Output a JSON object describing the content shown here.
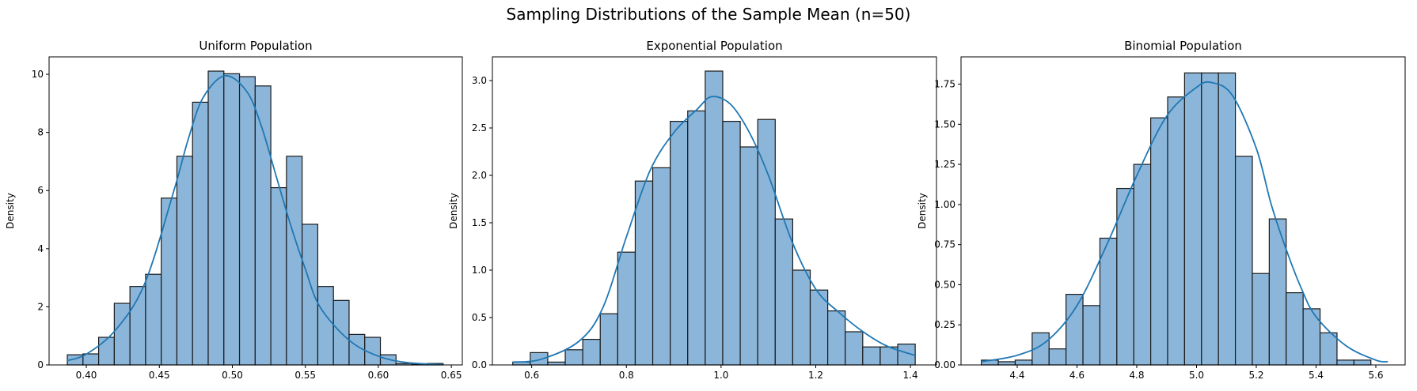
{
  "figure": {
    "title": "Sampling Distributions of the Sample Mean (n=50)"
  },
  "colors": {
    "bar_fill": "#8cb6d9",
    "bar_edge": "#1a1a1a",
    "kde_line": "#1f77b4"
  },
  "chart_data": [
    {
      "type": "bar",
      "title": "Uniform Population",
      "ylabel": "Density",
      "xlabel": "",
      "xlim": [
        0.3745,
        0.6575
      ],
      "ylim": [
        0,
        10.6
      ],
      "xticks": [
        0.4,
        0.45,
        0.5,
        0.55,
        0.6,
        0.65
      ],
      "xtick_labels": [
        "0.40",
        "0.45",
        "0.50",
        "0.55",
        "0.60",
        "0.65"
      ],
      "yticks": [
        0,
        2,
        4,
        6,
        8,
        10
      ],
      "ytick_labels": [
        "0",
        "2",
        "4",
        "6",
        "8",
        "10"
      ],
      "bin_start": 0.387,
      "bin_width": 0.01072,
      "values": [
        0.35,
        0.38,
        0.95,
        2.12,
        2.7,
        3.12,
        5.74,
        7.18,
        9.04,
        10.11,
        10.02,
        9.92,
        9.6,
        6.1,
        7.18,
        4.84,
        2.7,
        2.22,
        1.05,
        0.95,
        0.35,
        0.05,
        0.02,
        0.05
      ],
      "kde": [
        [
          0.387,
          0.15
        ],
        [
          0.4,
          0.37
        ],
        [
          0.42,
          1.2
        ],
        [
          0.44,
          2.8
        ],
        [
          0.46,
          6.0
        ],
        [
          0.47,
          7.8
        ],
        [
          0.48,
          9.2
        ],
        [
          0.495,
          9.95
        ],
        [
          0.51,
          9.4
        ],
        [
          0.52,
          8.2
        ],
        [
          0.53,
          6.5
        ],
        [
          0.54,
          4.8
        ],
        [
          0.55,
          3.3
        ],
        [
          0.56,
          2.0
        ],
        [
          0.58,
          0.85
        ],
        [
          0.6,
          0.3
        ],
        [
          0.62,
          0.08
        ],
        [
          0.645,
          0.01
        ]
      ]
    },
    {
      "type": "bar",
      "title": "Exponential Population",
      "ylabel": "Density",
      "xlabel": "",
      "xlim": [
        0.517,
        1.455
      ],
      "ylim": [
        0,
        3.25
      ],
      "xticks": [
        0.6,
        0.8,
        1.0,
        1.2,
        1.4
      ],
      "xtick_labels": [
        "0.6",
        "0.8",
        "1.0",
        "1.2",
        "1.4"
      ],
      "yticks": [
        0,
        0.5,
        1.0,
        1.5,
        2.0,
        2.5,
        3.0
      ],
      "ytick_labels": [
        "0.0",
        "0.5",
        "1.0",
        "1.5",
        "2.0",
        "2.5",
        "3.0"
      ],
      "bin_start": 0.56,
      "bin_width": 0.03696,
      "values": [
        0.03,
        0.13,
        0.03,
        0.16,
        0.27,
        0.54,
        1.19,
        1.94,
        2.08,
        2.57,
        2.68,
        3.1,
        2.57,
        2.3,
        2.59,
        1.54,
        1.0,
        0.79,
        0.57,
        0.35,
        0.19,
        0.19,
        0.22
      ],
      "kde": [
        [
          0.56,
          0.03
        ],
        [
          0.62,
          0.06
        ],
        [
          0.7,
          0.25
        ],
        [
          0.75,
          0.6
        ],
        [
          0.8,
          1.35
        ],
        [
          0.85,
          2.05
        ],
        [
          0.9,
          2.45
        ],
        [
          0.95,
          2.7
        ],
        [
          0.98,
          2.83
        ],
        [
          1.02,
          2.75
        ],
        [
          1.06,
          2.45
        ],
        [
          1.1,
          2.0
        ],
        [
          1.15,
          1.3
        ],
        [
          1.2,
          0.8
        ],
        [
          1.25,
          0.55
        ],
        [
          1.3,
          0.35
        ],
        [
          1.35,
          0.2
        ],
        [
          1.41,
          0.1
        ]
      ]
    },
    {
      "type": "bar",
      "title": "Binomial Population",
      "ylabel": "Density",
      "xlabel": "",
      "xlim": [
        4.212,
        5.698
      ],
      "ylim": [
        0,
        1.92
      ],
      "xticks": [
        4.4,
        4.6,
        4.8,
        5.0,
        5.2,
        5.4,
        5.6
      ],
      "xtick_labels": [
        "4.4",
        "4.6",
        "4.8",
        "5.0",
        "5.2",
        "5.4",
        "5.6"
      ],
      "yticks": [
        0,
        0.25,
        0.5,
        0.75,
        1.0,
        1.25,
        1.5,
        1.75
      ],
      "ytick_labels": [
        "0.00",
        "0.25",
        "0.50",
        "0.75",
        "1.00",
        "1.25",
        "1.50",
        "1.75"
      ],
      "bin_start": 4.28,
      "bin_width": 0.05667,
      "values": [
        0.03,
        0.02,
        0.03,
        0.2,
        0.1,
        0.44,
        0.37,
        0.79,
        1.1,
        1.25,
        1.54,
        1.67,
        1.82,
        1.82,
        1.82,
        1.3,
        0.57,
        0.91,
        0.45,
        0.35,
        0.2,
        0.03,
        0.03
      ],
      "kde": [
        [
          4.28,
          0.02
        ],
        [
          4.4,
          0.06
        ],
        [
          4.5,
          0.15
        ],
        [
          4.6,
          0.37
        ],
        [
          4.7,
          0.75
        ],
        [
          4.8,
          1.18
        ],
        [
          4.9,
          1.55
        ],
        [
          5.0,
          1.73
        ],
        [
          5.05,
          1.76
        ],
        [
          5.12,
          1.68
        ],
        [
          5.2,
          1.35
        ],
        [
          5.25,
          1.0
        ],
        [
          5.3,
          0.72
        ],
        [
          5.35,
          0.48
        ],
        [
          5.4,
          0.3
        ],
        [
          5.5,
          0.12
        ],
        [
          5.6,
          0.03
        ],
        [
          5.64,
          0.02
        ]
      ]
    }
  ]
}
